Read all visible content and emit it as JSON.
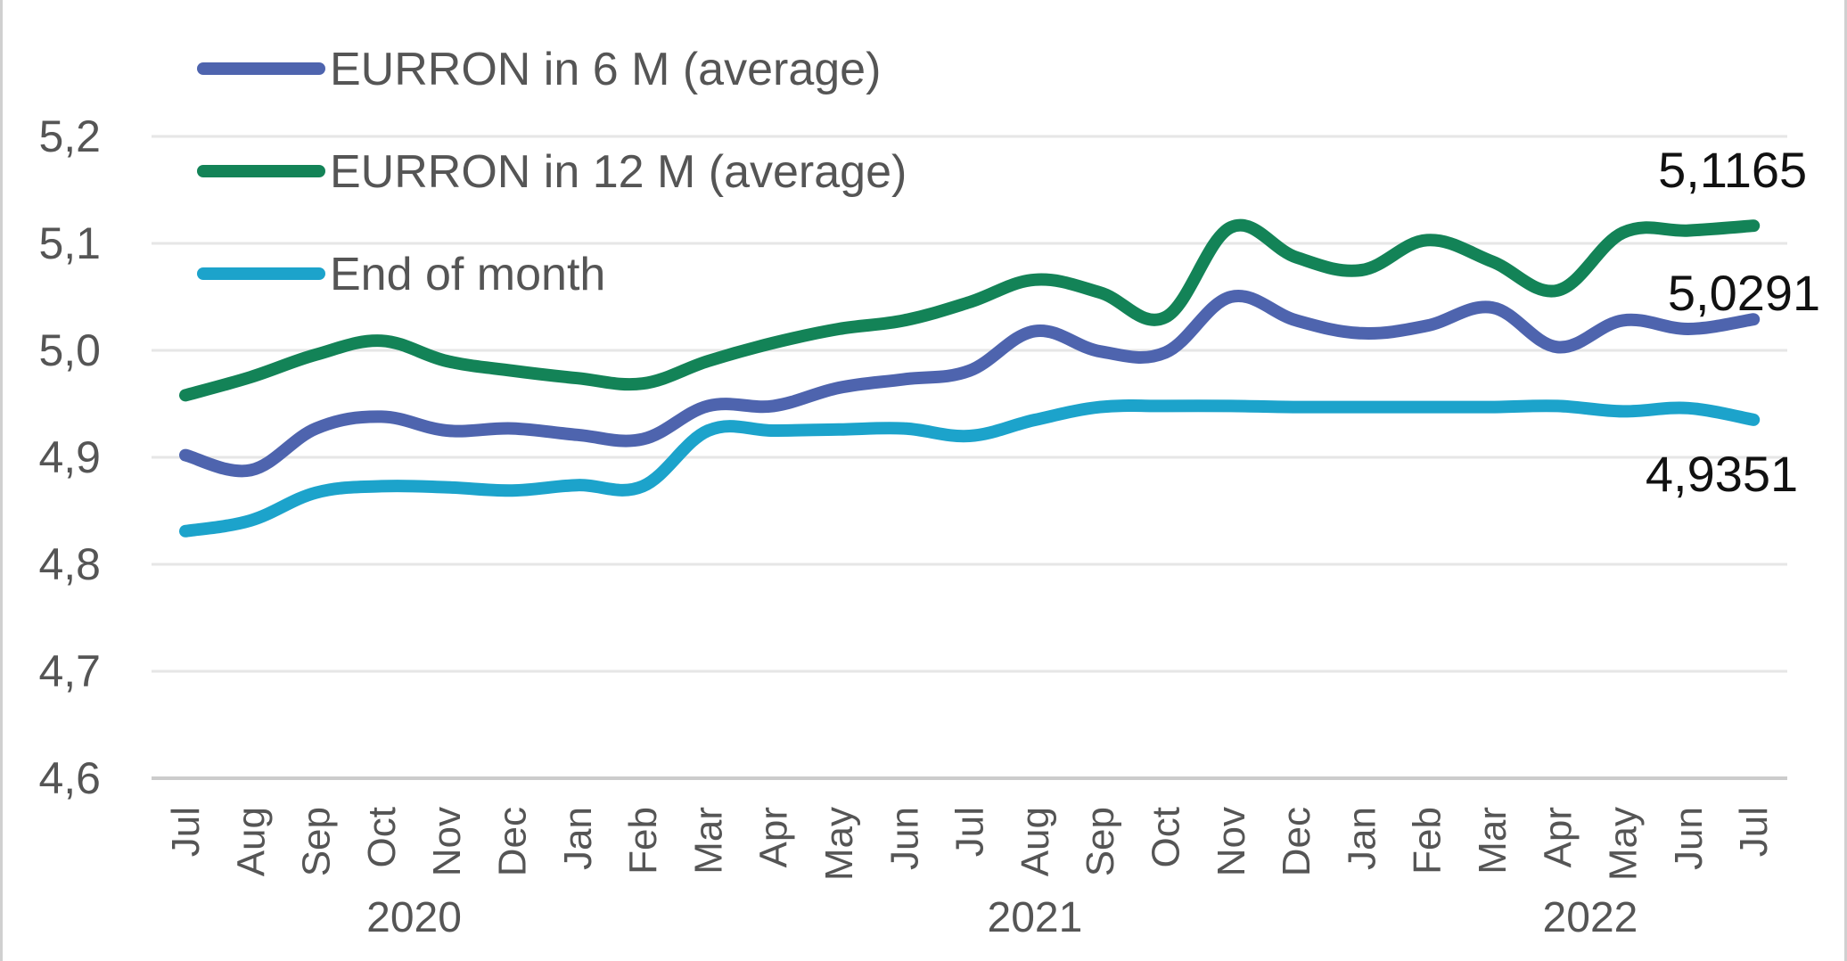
{
  "chart_data": {
    "type": "line",
    "categories": [
      "Jul",
      "Aug",
      "Sep",
      "Oct",
      "Nov",
      "Dec",
      "Jan",
      "Feb",
      "Mar",
      "Apr",
      "May",
      "Jun",
      "Jul",
      "Aug",
      "Sep",
      "Oct",
      "Nov",
      "Dec",
      "Jan",
      "Feb",
      "Mar",
      "Apr",
      "May",
      "Jun",
      "Jul"
    ],
    "year_groups": [
      {
        "label": "2020",
        "first": 0,
        "last": 7
      },
      {
        "label": "2021",
        "first": 7,
        "last": 19
      },
      {
        "label": "2022",
        "first": 19,
        "last": 24
      }
    ],
    "ylim": [
      4.6,
      5.2
    ],
    "yticks": [
      "4,6",
      "4,7",
      "4,8",
      "4,9",
      "5,0",
      "5,1",
      "5,2"
    ],
    "grid": true,
    "legend_position": "top-left",
    "series": [
      {
        "name": "EURRON in 6 M (average)",
        "color": "#4e64ae",
        "values": [
          4.902,
          4.888,
          4.927,
          4.938,
          4.925,
          4.927,
          4.921,
          4.917,
          4.948,
          4.948,
          4.965,
          4.973,
          4.981,
          5.018,
          4.999,
          4.998,
          5.05,
          5.028,
          5.016,
          5.023,
          5.04,
          5.003,
          5.028,
          5.02,
          5.029
        ],
        "end_label": "5,0291"
      },
      {
        "name": "EURRON in 12 M (average)",
        "color": "#138357",
        "values": [
          4.958,
          4.975,
          4.996,
          5.009,
          4.99,
          4.981,
          4.974,
          4.969,
          4.99,
          5.007,
          5.02,
          5.028,
          5.045,
          5.066,
          5.054,
          5.031,
          5.115,
          5.087,
          5.075,
          5.103,
          5.083,
          5.056,
          5.11,
          5.112,
          5.1165
        ],
        "end_label": "5,1165"
      },
      {
        "name": "End of month",
        "color": "#1ca3cb",
        "values": [
          4.831,
          4.841,
          4.867,
          4.873,
          4.872,
          4.869,
          4.874,
          4.873,
          4.925,
          4.925,
          4.926,
          4.927,
          4.92,
          4.935,
          4.947,
          4.948,
          4.948,
          4.947,
          4.947,
          4.947,
          4.947,
          4.948,
          4.943,
          4.946,
          4.9351
        ],
        "end_label": "4,9351"
      }
    ]
  }
}
